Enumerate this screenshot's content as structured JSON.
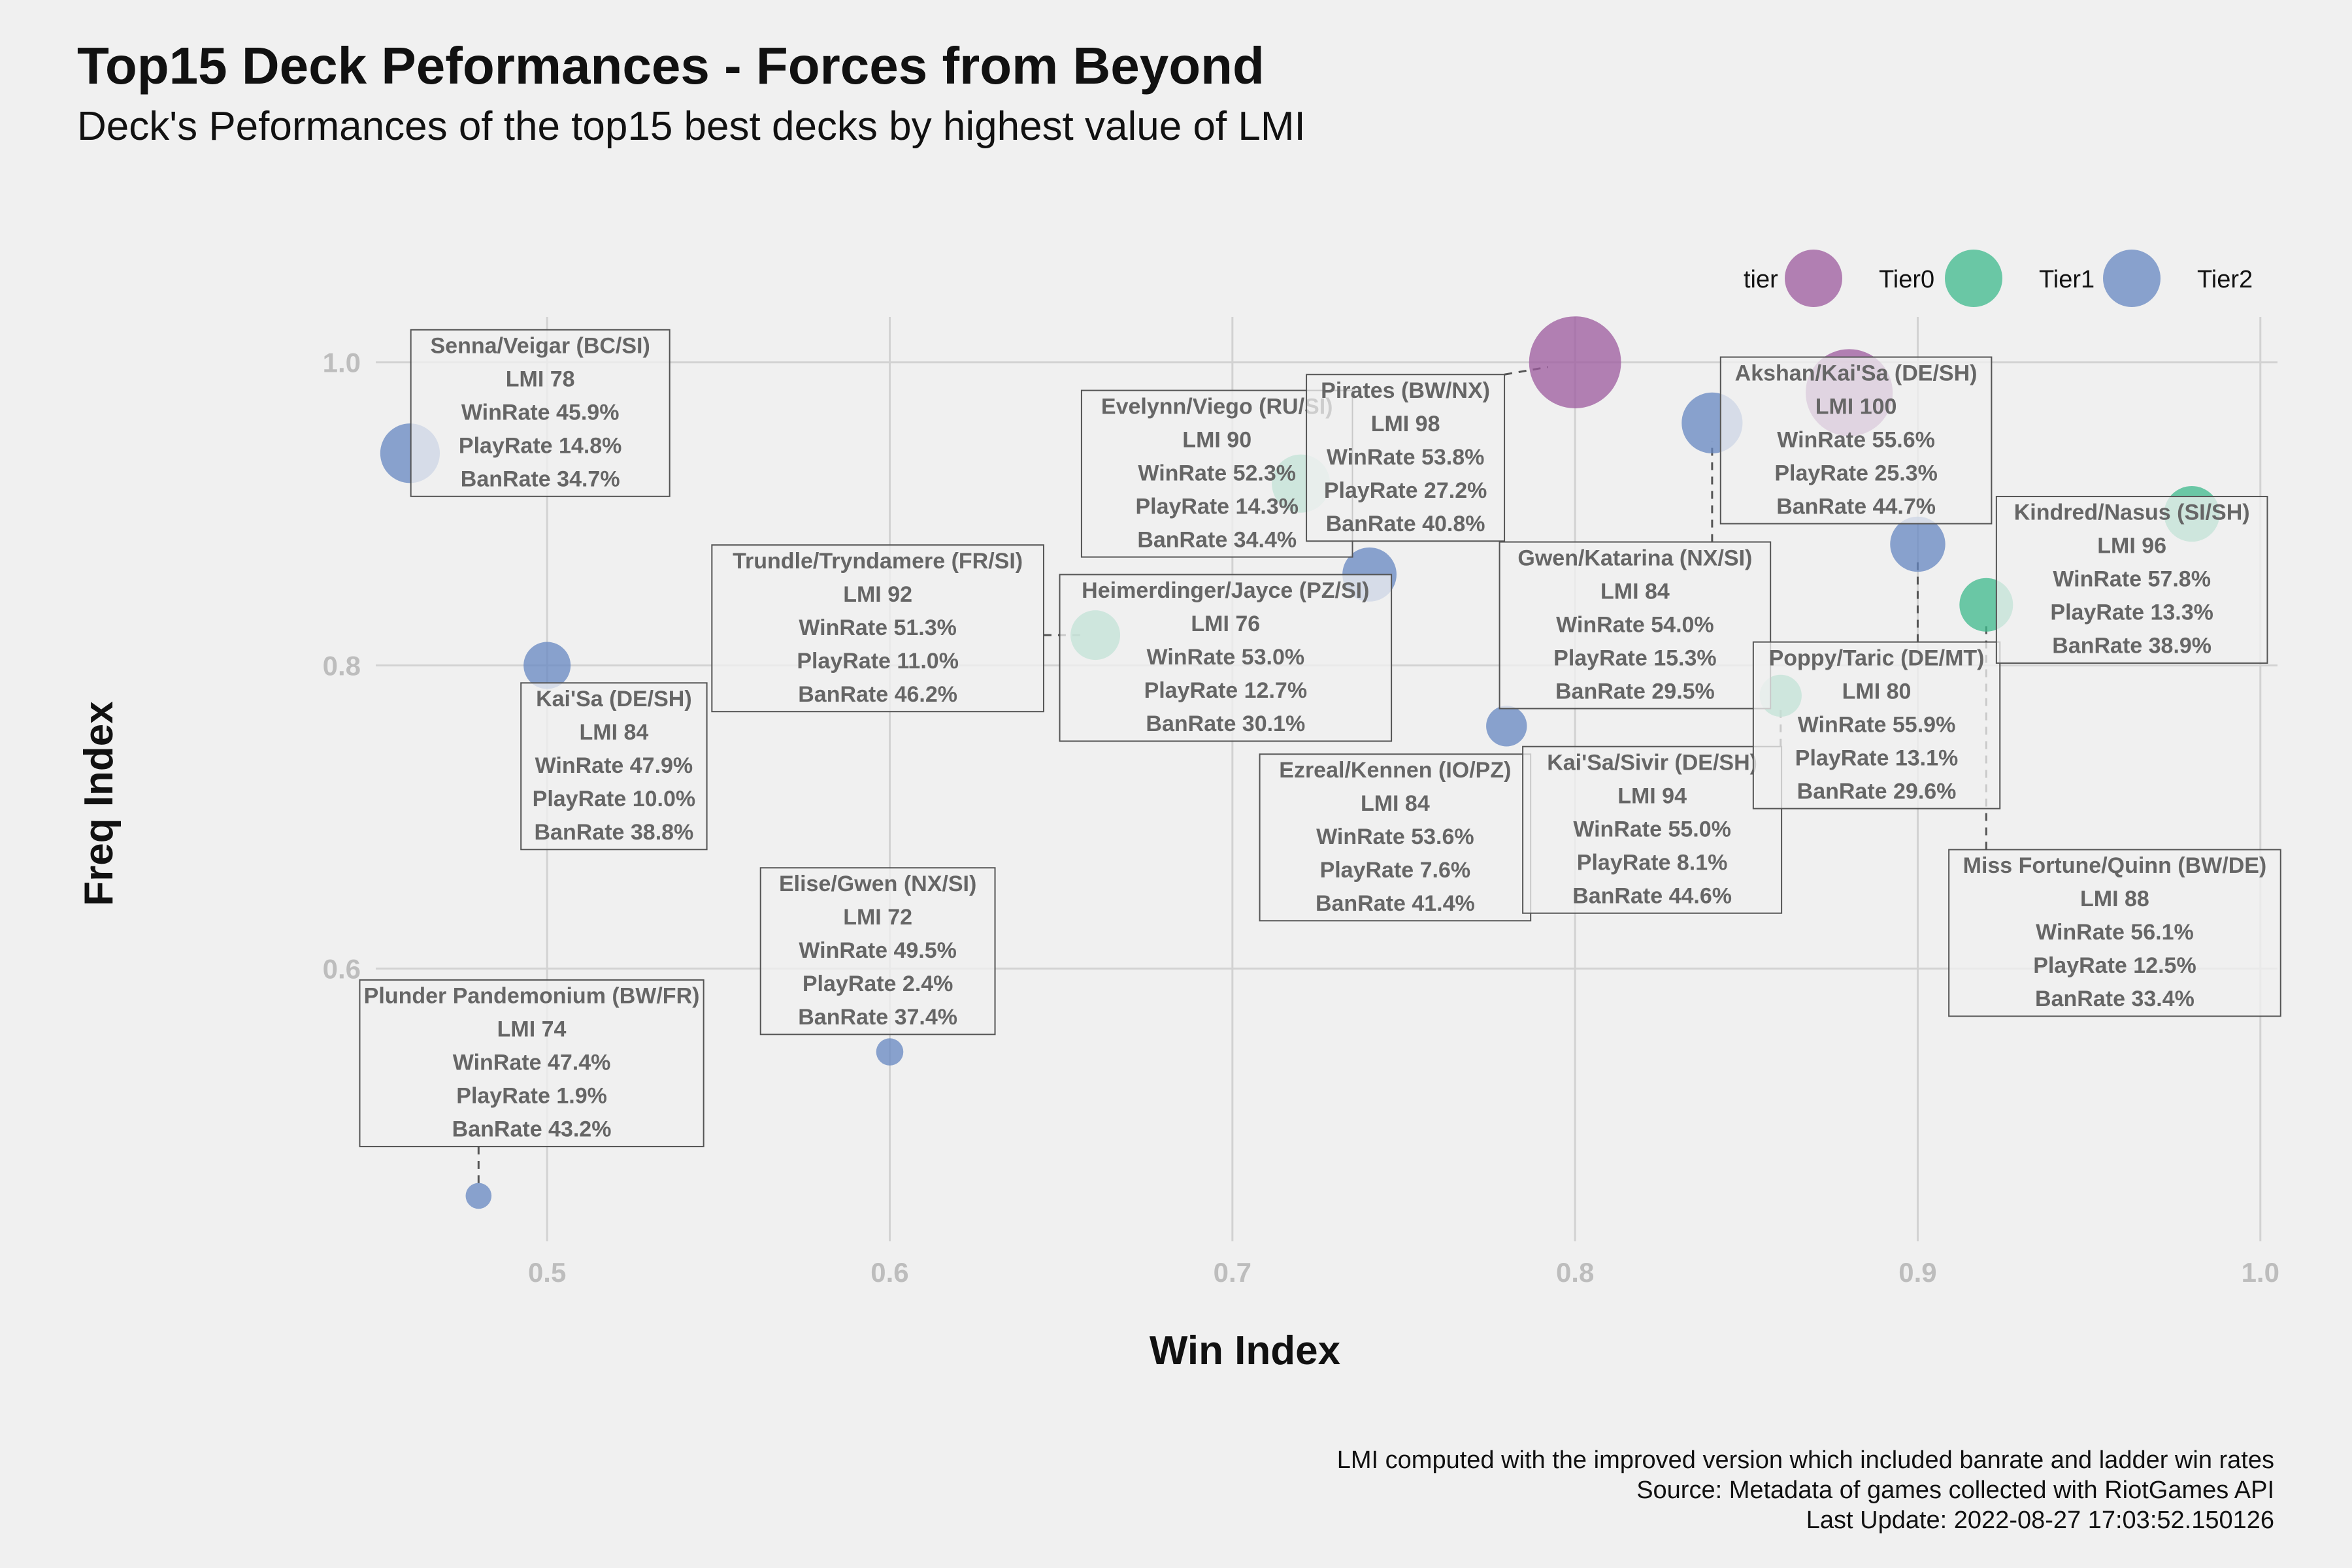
{
  "chart_data": {
    "type": "scatter",
    "title": "Top15 Deck Peformances - Forces from Beyond",
    "subtitle": "Deck's Peformances of the top15 best decks by highest value of LMI",
    "xlabel": "Win Index",
    "ylabel": "Freq Index",
    "xlim": [
      0.45,
      1.005
    ],
    "ylim": [
      0.42,
      1.03
    ],
    "x_ticks": [
      "0.5",
      "0.6",
      "0.7",
      "0.8",
      "0.9",
      "1.0"
    ],
    "y_ticks": [
      "0.6",
      "0.8",
      "1.0"
    ],
    "grid": true,
    "legend": {
      "title": "tier",
      "placement": "top-right",
      "entries": [
        {
          "name": "Tier0",
          "color": "#9c5a9e"
        },
        {
          "name": "Tier1",
          "color": "#3dba8c"
        },
        {
          "name": "Tier2",
          "color": "#6687c2"
        }
      ]
    },
    "caption": [
      "LMI computed with the improved version which included banrate and ladder win rates",
      "Source: Metadata of games collected with RiotGames API",
      "Last Update: 2022-08-27 17:03:52.150126"
    ],
    "points": [
      {
        "deck": "Senna/Veigar (BC/SI)",
        "x": 0.46,
        "y": 0.94,
        "tier": "Tier2",
        "lmi": "LMI 78",
        "winrate": "WinRate 45.9%",
        "playrate": "PlayRate 14.8%",
        "banrate": "BanRate 34.7%",
        "label_x": 0.498,
        "label_y": 0.9665
      },
      {
        "deck": "Kai'Sa (DE/SH)",
        "x": 0.5,
        "y": 0.8,
        "tier": "Tier2",
        "lmi": "LMI 84",
        "winrate": "WinRate 47.9%",
        "playrate": "PlayRate 10.0%",
        "banrate": "BanRate 38.8%",
        "label_x": 0.5195,
        "label_y": 0.7335
      },
      {
        "deck": "Plunder Pandemonium (BW/FR)",
        "x": 0.48,
        "y": 0.45,
        "tier": "Tier2",
        "lmi": "LMI 74",
        "winrate": "WinRate 47.4%",
        "playrate": "PlayRate 1.9%",
        "banrate": "BanRate 43.2%",
        "label_x": 0.4955,
        "label_y": 0.5375
      },
      {
        "deck": "Elise/Gwen (NX/SI)",
        "x": 0.6,
        "y": 0.545,
        "tier": "Tier2",
        "lmi": "LMI 72",
        "winrate": "WinRate 49.5%",
        "playrate": "PlayRate 2.4%",
        "banrate": "BanRate 37.4%",
        "label_x": 0.5965,
        "label_y": 0.6115
      },
      {
        "deck": "Trundle/Tryndamere (FR/SI)",
        "x": 0.66,
        "y": 0.82,
        "tier": "Tier1",
        "lmi": "LMI 92",
        "winrate": "WinRate 51.3%",
        "playrate": "PlayRate 11.0%",
        "banrate": "BanRate 46.2%",
        "label_x": 0.5965,
        "label_y": 0.8245
      },
      {
        "deck": "Heimerdinger/Jayce (PZ/SI)",
        "x": 0.74,
        "y": 0.86,
        "tier": "Tier2",
        "lmi": "LMI 76",
        "winrate": "WinRate 53.0%",
        "playrate": "PlayRate 12.7%",
        "banrate": "BanRate 30.1%",
        "label_x": 0.698,
        "label_y": 0.805
      },
      {
        "deck": "Evelynn/Viego (RU/SI)",
        "x": 0.72,
        "y": 0.92,
        "tier": "Tier1",
        "lmi": "LMI 90",
        "winrate": "WinRate 52.3%",
        "playrate": "PlayRate 14.3%",
        "banrate": "BanRate 34.4%",
        "label_x": 0.6955,
        "label_y": 0.9265
      },
      {
        "deck": "Pirates (BW/NX)",
        "x": 0.8,
        "y": 1.0,
        "tier": "Tier0",
        "lmi": "LMI 98",
        "winrate": "WinRate 53.8%",
        "playrate": "PlayRate 27.2%",
        "banrate": "BanRate 40.8%",
        "label_x": 0.7505,
        "label_y": 0.937
      },
      {
        "deck": "Gwen/Katarina (NX/SI)",
        "x": 0.84,
        "y": 0.96,
        "tier": "Tier2",
        "lmi": "LMI 84",
        "winrate": "WinRate 54.0%",
        "playrate": "PlayRate 15.3%",
        "banrate": "BanRate 29.5%",
        "label_x": 0.8175,
        "label_y": 0.8265
      },
      {
        "deck": "Ezreal/Kennen (IO/PZ)",
        "x": 0.78,
        "y": 0.76,
        "tier": "Tier2",
        "lmi": "LMI 84",
        "winrate": "WinRate 53.6%",
        "playrate": "PlayRate 7.6%",
        "banrate": "BanRate 41.4%",
        "label_x": 0.7475,
        "label_y": 0.6865
      },
      {
        "deck": "Kai'Sa/Sivir (DE/SH)",
        "x": 0.86,
        "y": 0.78,
        "tier": "Tier1",
        "lmi": "LMI 94",
        "winrate": "WinRate 55.0%",
        "playrate": "PlayRate 8.1%",
        "banrate": "BanRate 44.6%",
        "label_x": 0.8225,
        "label_y": 0.6915
      },
      {
        "deck": "Akshan/Kai'Sa (DE/SH)",
        "x": 0.88,
        "y": 0.98,
        "tier": "Tier0",
        "lmi": "LMI 100",
        "winrate": "WinRate 55.6%",
        "playrate": "PlayRate 25.3%",
        "banrate": "BanRate 44.7%",
        "label_x": 0.882,
        "label_y": 0.9485
      },
      {
        "deck": "Poppy/Taric (DE/MT)",
        "x": 0.9,
        "y": 0.88,
        "tier": "Tier2",
        "lmi": "LMI 80",
        "winrate": "WinRate 55.9%",
        "playrate": "PlayRate 13.1%",
        "banrate": "BanRate 29.6%",
        "label_x": 0.888,
        "label_y": 0.7605
      },
      {
        "deck": "Kindred/Nasus (SI/SH)",
        "x": 0.98,
        "y": 0.9,
        "tier": "Tier1",
        "lmi": "LMI 96",
        "winrate": "WinRate 57.8%",
        "playrate": "PlayRate 13.3%",
        "banrate": "BanRate 38.9%",
        "label_x": 0.9625,
        "label_y": 0.8565
      },
      {
        "deck": "Miss Fortune/Quinn (BW/DE)",
        "x": 0.92,
        "y": 0.84,
        "tier": "Tier1",
        "lmi": "LMI 88",
        "winrate": "WinRate 56.1%",
        "playrate": "PlayRate 12.5%",
        "banrate": "BanRate 33.4%",
        "label_x": 0.9575,
        "label_y": 0.6235
      }
    ]
  }
}
